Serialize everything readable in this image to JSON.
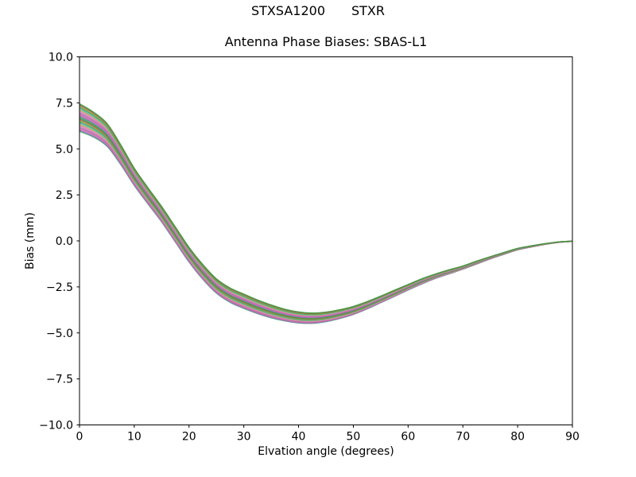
{
  "figure": {
    "suptitle_left": "STXSA1200",
    "suptitle_right": "STXR",
    "axes_title": "Antenna Phase Biases: SBAS-L1",
    "xlabel": "Elvation angle (degrees)",
    "ylabel": "Bias (mm)"
  },
  "chart_data": {
    "type": "line",
    "suptitle": "STXSA1200        STXR",
    "title": "Antenna Phase Biases: SBAS-L1",
    "xlabel": "Elvation angle (degrees)",
    "ylabel": "Bias (mm)",
    "xlim": [
      0,
      90
    ],
    "ylim": [
      -10,
      10
    ],
    "xticks": [
      0,
      10,
      20,
      30,
      40,
      50,
      60,
      70,
      80,
      90
    ],
    "xtick_labels": [
      "0",
      "10",
      "20",
      "30",
      "40",
      "50",
      "60",
      "70",
      "80",
      "90"
    ],
    "yticks": [
      10.0,
      7.5,
      5.0,
      2.5,
      0.0,
      -2.5,
      -5.0,
      -7.5,
      -10.0
    ],
    "ytick_labels": [
      "10.0",
      "7.5",
      "5.0",
      "2.5",
      "0.0",
      "−2.5",
      "−5.0",
      "−7.5",
      "−10.0"
    ],
    "grid": false,
    "legend": "none",
    "background": "#ffffff",
    "axis_color": "#000000",
    "x": [
      0,
      2.5,
      5,
      7.5,
      10,
      12.5,
      15,
      17.5,
      20,
      22.5,
      25,
      27.5,
      30,
      32.5,
      35,
      37.5,
      40,
      42.5,
      45,
      47.5,
      50,
      52.5,
      55,
      57.5,
      60,
      62.5,
      65,
      67.5,
      70,
      72.5,
      75,
      77.5,
      80,
      82.5,
      85,
      87.5,
      90
    ],
    "series_model": {
      "description": "Bundle of near-identical antenna phase-bias calibration curves; each line value = center + offset*spread, offset uniformly spaced in [-1,1]",
      "center": [
        6.7,
        6.33,
        5.77,
        4.7,
        3.48,
        2.45,
        1.45,
        0.35,
        -0.75,
        -1.68,
        -2.45,
        -2.95,
        -3.28,
        -3.58,
        -3.83,
        -4.03,
        -4.16,
        -4.2,
        -4.13,
        -3.98,
        -3.78,
        -3.5,
        -3.18,
        -2.85,
        -2.52,
        -2.2,
        -1.92,
        -1.68,
        -1.45,
        -1.18,
        -0.92,
        -0.68,
        -0.45,
        -0.3,
        -0.17,
        -0.07,
        -0.02
      ],
      "spread": [
        0.75,
        0.68,
        0.62,
        0.54,
        0.47,
        0.44,
        0.42,
        0.41,
        0.4,
        0.4,
        0.39,
        0.39,
        0.39,
        0.37,
        0.35,
        0.32,
        0.3,
        0.28,
        0.26,
        0.24,
        0.22,
        0.2,
        0.18,
        0.17,
        0.15,
        0.14,
        0.12,
        0.11,
        0.09,
        0.08,
        0.06,
        0.05,
        0.04,
        0.03,
        0.02,
        0.015,
        0.01
      ],
      "n_lines": 24,
      "line_width": 1.4,
      "palette": [
        "#3f9b42",
        "#9e5c50",
        "#9aa83c",
        "#4a9e4f",
        "#49b6cf",
        "#b9b437",
        "#e27ec0",
        "#c287b4",
        "#ba5fb4",
        "#d4719f",
        "#9a6ec2",
        "#3da06e"
      ]
    }
  }
}
